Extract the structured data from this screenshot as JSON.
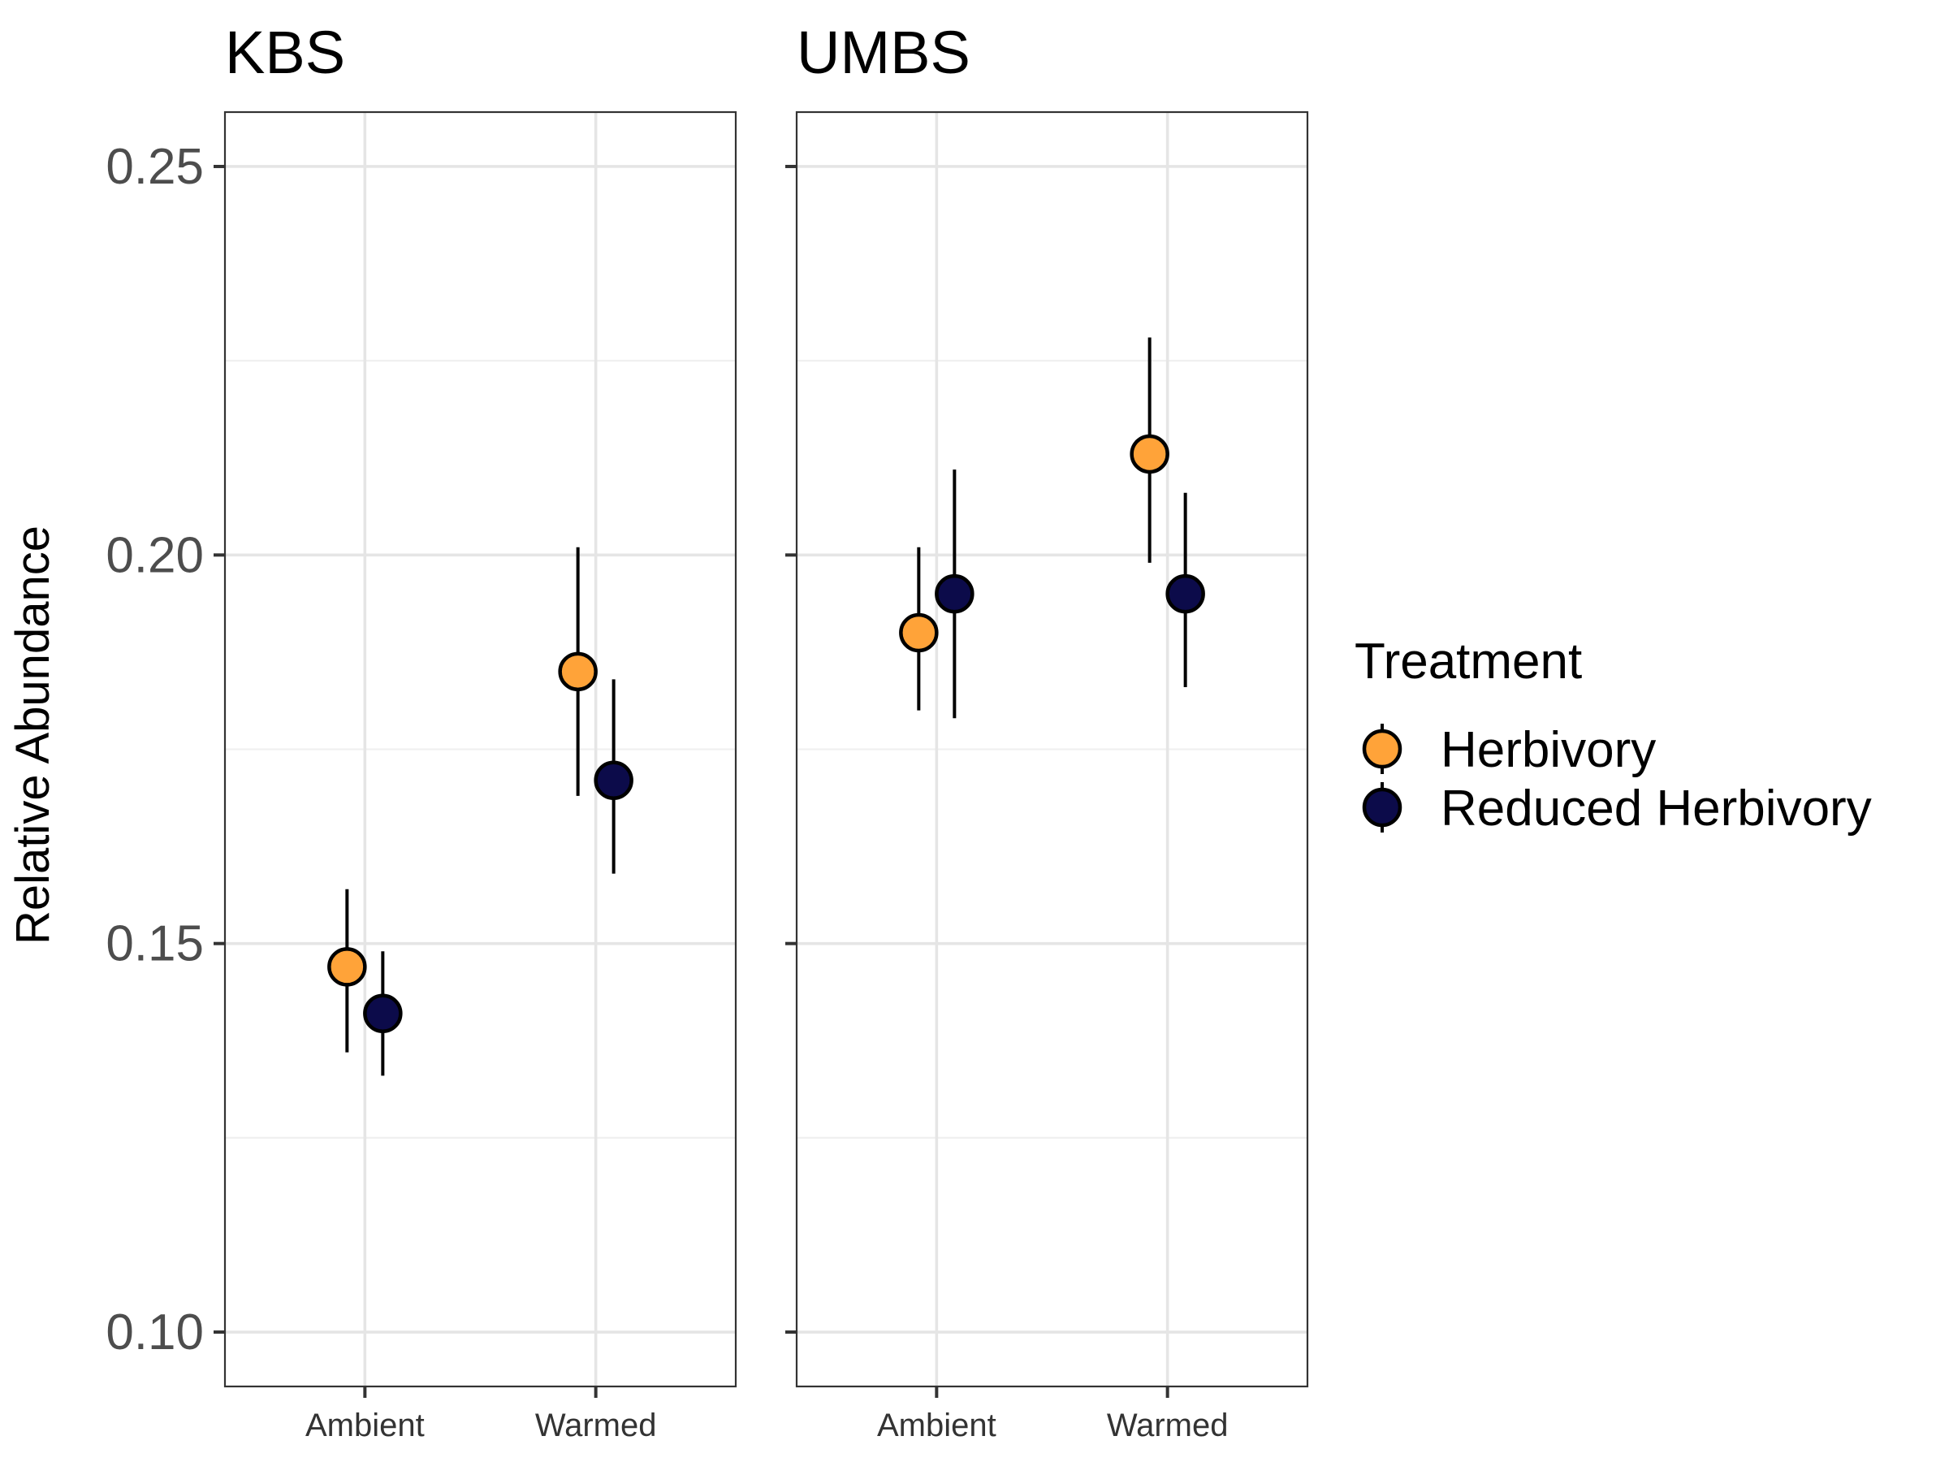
{
  "chart_data": {
    "type": "scatter",
    "subtype": "point-with-error-bars",
    "ylabel": "Relative Abundance",
    "ylim": [
      0.093,
      0.257
    ],
    "yticks": [
      0.1,
      0.15,
      0.2,
      0.25
    ],
    "ytick_labels": [
      "0.10",
      "0.15",
      "0.20",
      "0.25"
    ],
    "categories": [
      "Ambient",
      "Warmed"
    ],
    "grid": true,
    "legend": {
      "title": "Treatment",
      "placement": "right",
      "entries": [
        {
          "name": "Herbivory",
          "color": "#ffa339"
        },
        {
          "name": "Reduced Herbivory",
          "color": "#0c0b4a"
        }
      ]
    },
    "panels": [
      {
        "title": "KBS",
        "series": [
          {
            "name": "Herbivory",
            "values": [
              0.147,
              0.185
            ],
            "lower": [
              0.136,
              0.169
            ],
            "upper": [
              0.157,
              0.201
            ]
          },
          {
            "name": "Reduced Herbivory",
            "values": [
              0.141,
              0.171
            ],
            "lower": [
              0.133,
              0.159
            ],
            "upper": [
              0.149,
              0.184
            ]
          }
        ]
      },
      {
        "title": "UMBS",
        "series": [
          {
            "name": "Herbivory",
            "values": [
              0.19,
              0.213
            ],
            "lower": [
              0.18,
              0.199
            ],
            "upper": [
              0.201,
              0.228
            ]
          },
          {
            "name": "Reduced Herbivory",
            "values": [
              0.195,
              0.195
            ],
            "lower": [
              0.179,
              0.183
            ],
            "upper": [
              0.211,
              0.208
            ]
          }
        ]
      }
    ]
  }
}
